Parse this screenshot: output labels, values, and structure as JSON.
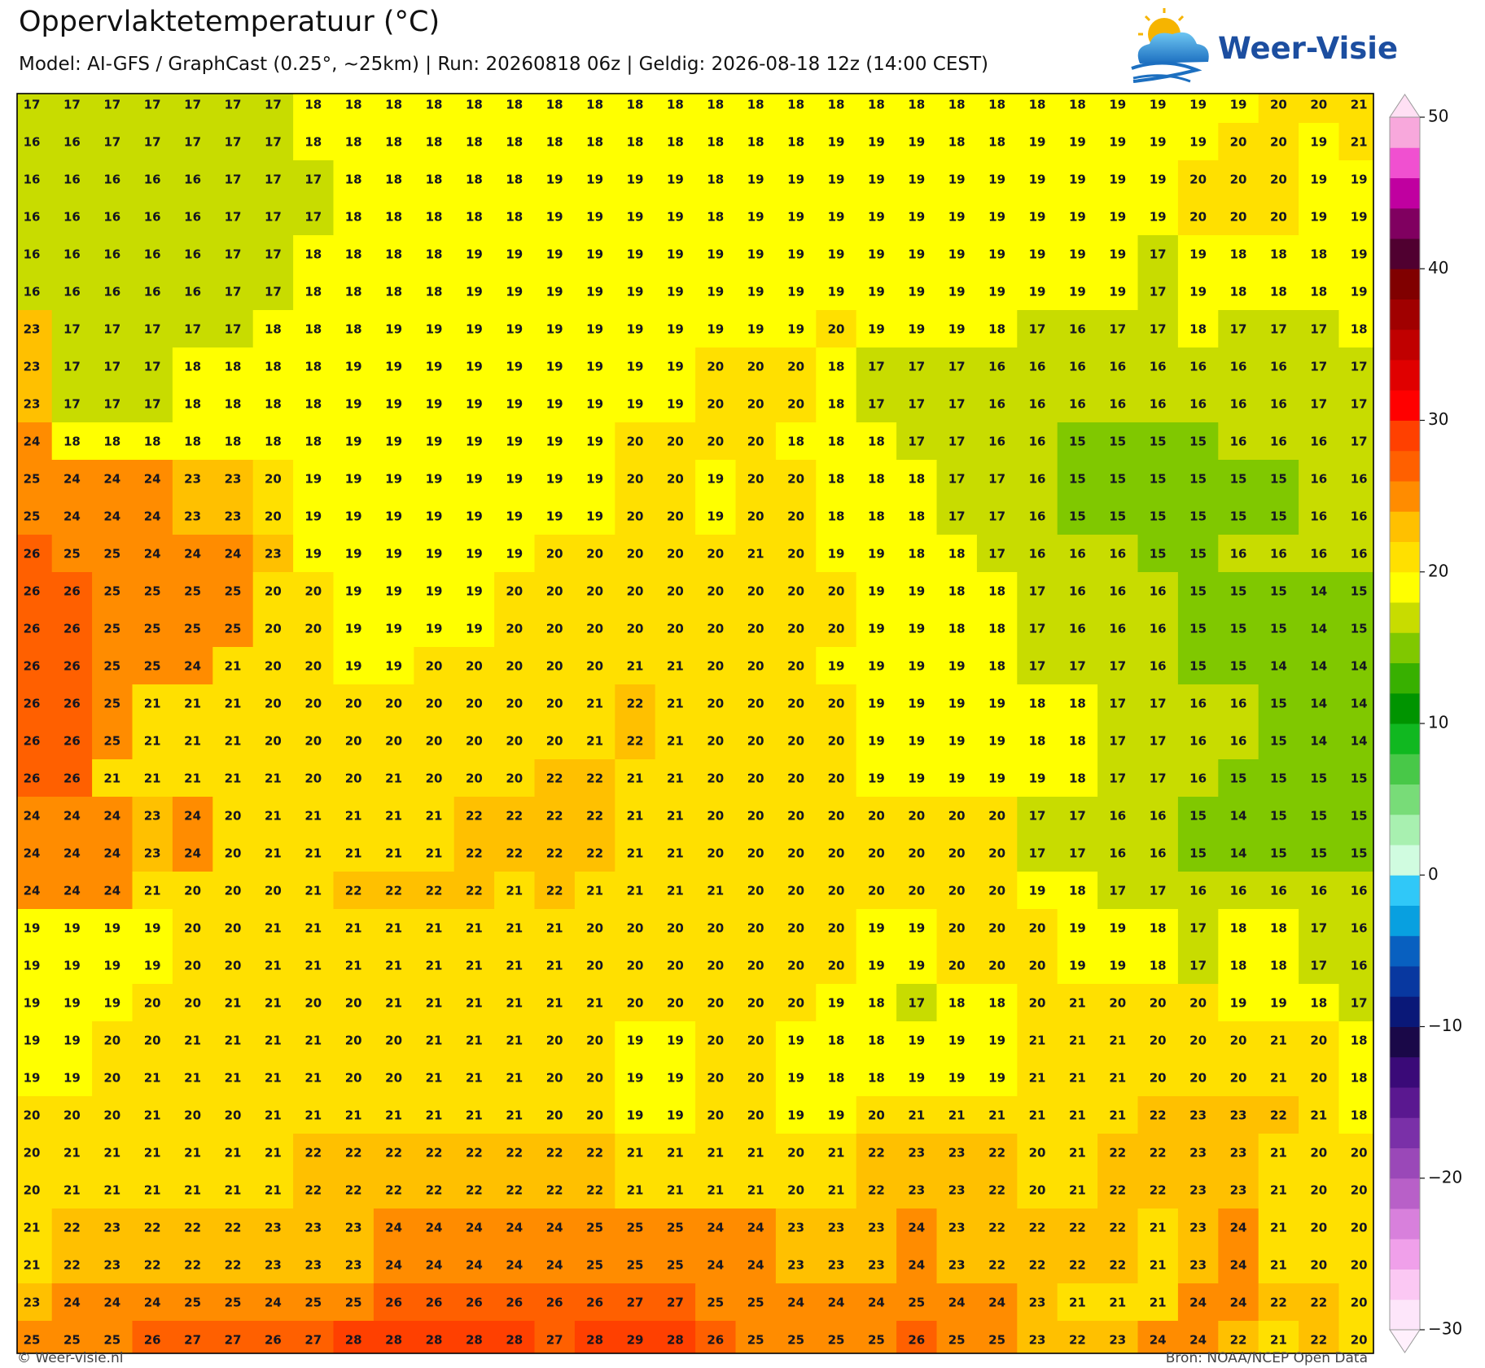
{
  "header": {
    "title": "Oppervlaktetemperatuur (°C)",
    "subtitle": "Model: AI-GFS / GraphCast (0.25°, ~25km)  |  Run: 20260818 06z  |  Geldig: 2026-08-18 12z (14:00 CEST)"
  },
  "logo": "Weer-Visie",
  "map": {
    "rows": [
      [
        17,
        17,
        17,
        17,
        17,
        17,
        17,
        18,
        18,
        18,
        18,
        18,
        18,
        18,
        18,
        18,
        18,
        18,
        18,
        18,
        18,
        18,
        18,
        18,
        18,
        18,
        18,
        19,
        19,
        19,
        19,
        20,
        20,
        21
      ],
      [
        16,
        16,
        17,
        17,
        17,
        17,
        17,
        18,
        18,
        18,
        18,
        18,
        18,
        18,
        18,
        18,
        18,
        18,
        18,
        18,
        19,
        19,
        19,
        18,
        18,
        19,
        19,
        19,
        19,
        19,
        20,
        20,
        19,
        21
      ],
      [
        16,
        16,
        16,
        16,
        16,
        17,
        17,
        17,
        18,
        18,
        18,
        18,
        18,
        19,
        19,
        19,
        19,
        18,
        19,
        19,
        19,
        19,
        19,
        19,
        19,
        19,
        19,
        19,
        19,
        20,
        20,
        20,
        19,
        19
      ],
      [
        16,
        16,
        16,
        16,
        16,
        17,
        17,
        17,
        18,
        18,
        18,
        18,
        18,
        19,
        19,
        19,
        19,
        18,
        19,
        19,
        19,
        19,
        19,
        19,
        19,
        19,
        19,
        19,
        19,
        20,
        20,
        20,
        19,
        19
      ],
      [
        16,
        16,
        16,
        16,
        16,
        17,
        17,
        18,
        18,
        18,
        18,
        19,
        19,
        19,
        19,
        19,
        19,
        19,
        19,
        19,
        19,
        19,
        19,
        19,
        19,
        19,
        19,
        19,
        17,
        19,
        18,
        18,
        18,
        19
      ],
      [
        16,
        16,
        16,
        16,
        16,
        17,
        17,
        18,
        18,
        18,
        18,
        19,
        19,
        19,
        19,
        19,
        19,
        19,
        19,
        19,
        19,
        19,
        19,
        19,
        19,
        19,
        19,
        19,
        17,
        19,
        18,
        18,
        18,
        19
      ],
      [
        23,
        17,
        17,
        17,
        17,
        17,
        18,
        18,
        18,
        19,
        19,
        19,
        19,
        19,
        19,
        19,
        19,
        19,
        19,
        19,
        20,
        19,
        19,
        19,
        18,
        17,
        16,
        17,
        17,
        18,
        17,
        17,
        17,
        18
      ],
      [
        23,
        17,
        17,
        17,
        18,
        18,
        18,
        18,
        19,
        19,
        19,
        19,
        19,
        19,
        19,
        19,
        19,
        20,
        20,
        20,
        18,
        17,
        17,
        17,
        16,
        16,
        16,
        16,
        16,
        16,
        16,
        16,
        17,
        17
      ],
      [
        23,
        17,
        17,
        17,
        18,
        18,
        18,
        18,
        19,
        19,
        19,
        19,
        19,
        19,
        19,
        19,
        19,
        20,
        20,
        20,
        18,
        17,
        17,
        17,
        16,
        16,
        16,
        16,
        16,
        16,
        16,
        16,
        17,
        17
      ],
      [
        24,
        18,
        18,
        18,
        18,
        18,
        18,
        18,
        19,
        19,
        19,
        19,
        19,
        19,
        19,
        20,
        20,
        20,
        20,
        18,
        18,
        18,
        17,
        17,
        16,
        16,
        15,
        15,
        15,
        15,
        16,
        16,
        16,
        17
      ],
      [
        25,
        24,
        24,
        24,
        23,
        23,
        20,
        19,
        19,
        19,
        19,
        19,
        19,
        19,
        19,
        20,
        20,
        19,
        20,
        20,
        18,
        18,
        18,
        17,
        17,
        16,
        15,
        15,
        15,
        15,
        15,
        15,
        16,
        16
      ],
      [
        25,
        24,
        24,
        24,
        23,
        23,
        20,
        19,
        19,
        19,
        19,
        19,
        19,
        19,
        19,
        20,
        20,
        19,
        20,
        20,
        18,
        18,
        18,
        17,
        17,
        16,
        15,
        15,
        15,
        15,
        15,
        15,
        16,
        16
      ],
      [
        26,
        25,
        25,
        24,
        24,
        24,
        23,
        19,
        19,
        19,
        19,
        19,
        19,
        20,
        20,
        20,
        20,
        20,
        21,
        20,
        19,
        19,
        18,
        18,
        17,
        16,
        16,
        16,
        15,
        15,
        16,
        16,
        16,
        16
      ],
      [
        26,
        26,
        25,
        25,
        25,
        25,
        20,
        20,
        19,
        19,
        19,
        19,
        20,
        20,
        20,
        20,
        20,
        20,
        20,
        20,
        20,
        19,
        19,
        18,
        18,
        17,
        16,
        16,
        16,
        15,
        15,
        15,
        14,
        15
      ],
      [
        26,
        26,
        25,
        25,
        25,
        25,
        20,
        20,
        19,
        19,
        19,
        19,
        20,
        20,
        20,
        20,
        20,
        20,
        20,
        20,
        20,
        19,
        19,
        18,
        18,
        17,
        16,
        16,
        16,
        15,
        15,
        15,
        14,
        15
      ],
      [
        26,
        26,
        25,
        25,
        24,
        21,
        20,
        20,
        19,
        19,
        20,
        20,
        20,
        20,
        20,
        21,
        21,
        20,
        20,
        20,
        19,
        19,
        19,
        19,
        18,
        17,
        17,
        17,
        16,
        15,
        15,
        14,
        14,
        14
      ],
      [
        26,
        26,
        25,
        21,
        21,
        21,
        20,
        20,
        20,
        20,
        20,
        20,
        20,
        20,
        21,
        22,
        21,
        20,
        20,
        20,
        20,
        19,
        19,
        19,
        19,
        18,
        18,
        17,
        17,
        16,
        16,
        15,
        14,
        14
      ],
      [
        26,
        26,
        25,
        21,
        21,
        21,
        20,
        20,
        20,
        20,
        20,
        20,
        20,
        20,
        21,
        22,
        21,
        20,
        20,
        20,
        20,
        19,
        19,
        19,
        19,
        18,
        18,
        17,
        17,
        16,
        16,
        15,
        14,
        14
      ],
      [
        26,
        26,
        21,
        21,
        21,
        21,
        21,
        20,
        20,
        21,
        20,
        20,
        20,
        22,
        22,
        21,
        21,
        20,
        20,
        20,
        20,
        19,
        19,
        19,
        19,
        19,
        18,
        17,
        17,
        16,
        15,
        15,
        15,
        15
      ],
      [
        24,
        24,
        24,
        23,
        24,
        20,
        21,
        21,
        21,
        21,
        21,
        22,
        22,
        22,
        22,
        21,
        21,
        20,
        20,
        20,
        20,
        20,
        20,
        20,
        20,
        17,
        17,
        16,
        16,
        15,
        14,
        15,
        15,
        15
      ],
      [
        24,
        24,
        24,
        23,
        24,
        20,
        21,
        21,
        21,
        21,
        21,
        22,
        22,
        22,
        22,
        21,
        21,
        20,
        20,
        20,
        20,
        20,
        20,
        20,
        20,
        17,
        17,
        16,
        16,
        15,
        14,
        15,
        15,
        15
      ],
      [
        24,
        24,
        24,
        21,
        20,
        20,
        20,
        21,
        22,
        22,
        22,
        22,
        21,
        22,
        21,
        21,
        21,
        21,
        20,
        20,
        20,
        20,
        20,
        20,
        20,
        19,
        18,
        17,
        17,
        16,
        16,
        16,
        16,
        16
      ],
      [
        19,
        19,
        19,
        19,
        20,
        20,
        21,
        21,
        21,
        21,
        21,
        21,
        21,
        21,
        20,
        20,
        20,
        20,
        20,
        20,
        20,
        19,
        19,
        20,
        20,
        20,
        19,
        19,
        18,
        17,
        18,
        18,
        17,
        16
      ],
      [
        19,
        19,
        19,
        19,
        20,
        20,
        21,
        21,
        21,
        21,
        21,
        21,
        21,
        21,
        20,
        20,
        20,
        20,
        20,
        20,
        20,
        19,
        19,
        20,
        20,
        20,
        19,
        19,
        18,
        17,
        18,
        18,
        17,
        16
      ],
      [
        19,
        19,
        19,
        20,
        20,
        21,
        21,
        20,
        20,
        21,
        21,
        21,
        21,
        21,
        21,
        20,
        20,
        20,
        20,
        20,
        19,
        18,
        17,
        18,
        18,
        20,
        21,
        20,
        20,
        20,
        19,
        19,
        18,
        17
      ],
      [
        19,
        19,
        20,
        20,
        21,
        21,
        21,
        21,
        20,
        20,
        21,
        21,
        21,
        20,
        20,
        19,
        19,
        20,
        20,
        19,
        18,
        18,
        19,
        19,
        19,
        21,
        21,
        21,
        20,
        20,
        20,
        21,
        20,
        18
      ],
      [
        19,
        19,
        20,
        21,
        21,
        21,
        21,
        21,
        20,
        20,
        21,
        21,
        21,
        20,
        20,
        19,
        19,
        20,
        20,
        19,
        18,
        18,
        19,
        19,
        19,
        21,
        21,
        21,
        20,
        20,
        20,
        21,
        20,
        18
      ],
      [
        20,
        20,
        20,
        21,
        20,
        20,
        21,
        21,
        21,
        21,
        21,
        21,
        21,
        20,
        20,
        19,
        19,
        20,
        20,
        19,
        19,
        20,
        21,
        21,
        21,
        21,
        21,
        21,
        22,
        23,
        23,
        22,
        21,
        18
      ],
      [
        20,
        21,
        21,
        21,
        21,
        21,
        21,
        22,
        22,
        22,
        22,
        22,
        22,
        22,
        22,
        21,
        21,
        21,
        21,
        20,
        21,
        22,
        23,
        23,
        22,
        20,
        21,
        22,
        22,
        23,
        23,
        21,
        20,
        20
      ],
      [
        20,
        21,
        21,
        21,
        21,
        21,
        21,
        22,
        22,
        22,
        22,
        22,
        22,
        22,
        22,
        21,
        21,
        21,
        21,
        20,
        21,
        22,
        23,
        23,
        22,
        20,
        21,
        22,
        22,
        23,
        23,
        21,
        20,
        20
      ],
      [
        21,
        22,
        23,
        22,
        22,
        22,
        23,
        23,
        23,
        24,
        24,
        24,
        24,
        24,
        25,
        25,
        25,
        24,
        24,
        23,
        23,
        23,
        24,
        23,
        22,
        22,
        22,
        22,
        21,
        23,
        24,
        21,
        20,
        20
      ],
      [
        21,
        22,
        23,
        22,
        22,
        22,
        23,
        23,
        23,
        24,
        24,
        24,
        24,
        24,
        25,
        25,
        25,
        24,
        24,
        23,
        23,
        23,
        24,
        23,
        22,
        22,
        22,
        22,
        21,
        23,
        24,
        21,
        20,
        20
      ],
      [
        23,
        24,
        24,
        24,
        25,
        25,
        24,
        25,
        25,
        26,
        26,
        26,
        26,
        26,
        26,
        27,
        27,
        25,
        25,
        24,
        24,
        24,
        25,
        24,
        24,
        23,
        21,
        21,
        21,
        24,
        24,
        22,
        22,
        20
      ],
      [
        25,
        25,
        25,
        26,
        27,
        27,
        26,
        27,
        28,
        28,
        28,
        28,
        28,
        27,
        28,
        29,
        28,
        26,
        25,
        25,
        25,
        25,
        26,
        25,
        25,
        23,
        22,
        23,
        24,
        24,
        22,
        21,
        22,
        20
      ]
    ]
  },
  "colorbar": {
    "ticks": [
      {
        "value": -30,
        "label": "−30"
      },
      {
        "value": -20,
        "label": "−20"
      },
      {
        "value": -10,
        "label": "−10"
      },
      0,
      10,
      20,
      30,
      40,
      50
    ],
    "colors": [
      "#fde6fa",
      "#fbc8f3",
      "#f0a0ea",
      "#d880dc",
      "#b860c8",
      "#9a48b8",
      "#7a30a8",
      "#5a1890",
      "#3a0a78",
      "#1a0848",
      "#0a1878",
      "#0838a0",
      "#0860c0",
      "#08a0e0",
      "#30c8f8",
      "#d0fce0",
      "#a8f0b0",
      "#78dc78",
      "#48c848",
      "#10b820",
      "#009400",
      "#38b000",
      "#80c800",
      "#c8dc00",
      "#ffff00",
      "#ffe000",
      "#ffc000",
      "#ff8c00",
      "#ff6000",
      "#ff4000",
      "#ff0000",
      "#e00000",
      "#c00000",
      "#a00000",
      "#800000",
      "#500030",
      "#800060",
      "#c000a0",
      "#f050d0",
      "#f8a8dc"
    ],
    "extend_colors": [
      "#fff0fc",
      "#ffe0f4"
    ]
  },
  "footer": {
    "left": "© Weer-visie.nl",
    "right": "Bron: NOAA/NCEP Open Data"
  }
}
